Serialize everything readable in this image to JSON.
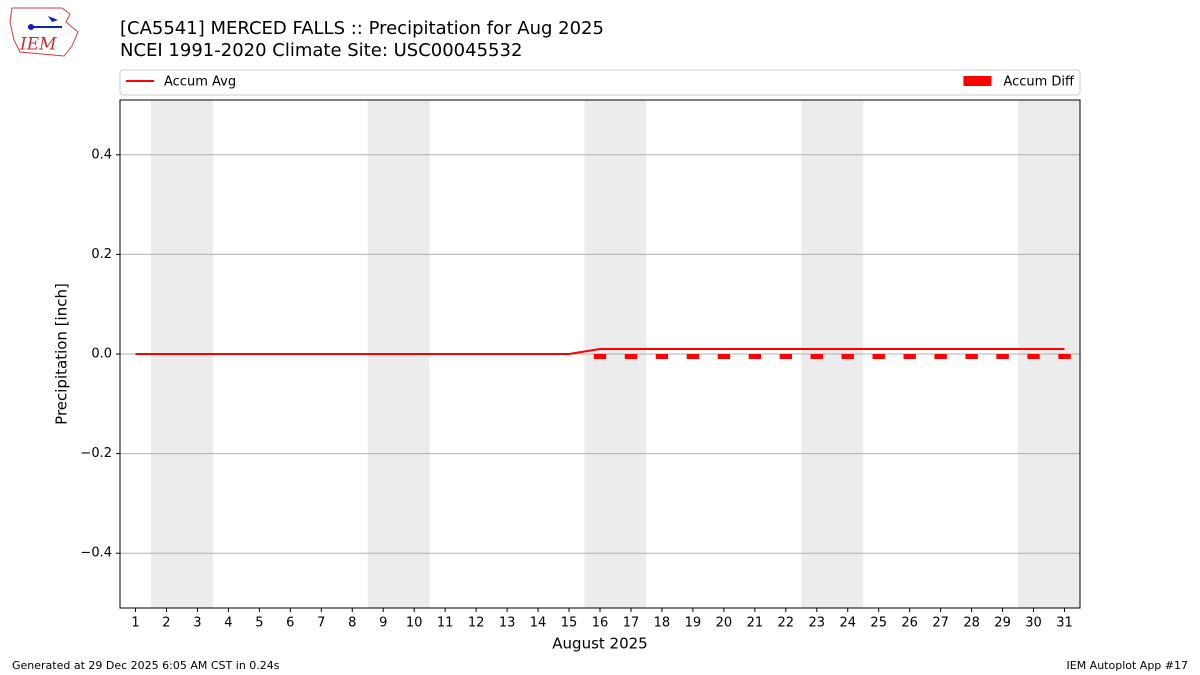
{
  "logo_text": "IEM",
  "footer": {
    "left": "Generated at 29 Dec 2025 6:05 AM CST in 0.24s",
    "right": "IEM Autoplot App #17"
  },
  "chart_data": {
    "type": "combo",
    "title": "[CA5541] MERCED FALLS :: Precipitation for Aug 2025",
    "subtitle": "NCEI 1991-2020 Climate Site: USC00045532",
    "x_label": "August 2025",
    "y_label": "Precipitation [inch]",
    "x": [
      1,
      2,
      3,
      4,
      5,
      6,
      7,
      8,
      9,
      10,
      11,
      12,
      13,
      14,
      15,
      16,
      17,
      18,
      19,
      20,
      21,
      22,
      23,
      24,
      25,
      26,
      27,
      28,
      29,
      30,
      31
    ],
    "xlim": [
      0.5,
      31.5
    ],
    "xticks": [
      1,
      2,
      3,
      4,
      5,
      6,
      7,
      8,
      9,
      10,
      11,
      12,
      13,
      14,
      15,
      16,
      17,
      18,
      19,
      20,
      21,
      22,
      23,
      24,
      25,
      26,
      27,
      28,
      29,
      30,
      31
    ],
    "ylim": [
      -0.51,
      0.51
    ],
    "yticks": [
      {
        "value": -0.4,
        "label": "−0.4"
      },
      {
        "value": -0.2,
        "label": "−0.2"
      },
      {
        "value": 0,
        "label": "0.0"
      },
      0.2,
      0.4
    ],
    "grid": true,
    "legend": "top",
    "shaded_spans": [
      [
        1.5,
        3.5
      ],
      [
        8.5,
        10.5
      ],
      [
        15.5,
        17.5
      ],
      [
        22.5,
        24.5
      ],
      [
        29.5,
        31.5
      ]
    ],
    "shade_color": "#ececec",
    "series": [
      {
        "name": "Accum Avg",
        "type": "line",
        "color": "#ff0000",
        "values": [
          0,
          0,
          0,
          0,
          0,
          0,
          0,
          0,
          0,
          0,
          0,
          0,
          0,
          0,
          0,
          0.01,
          0.01,
          0.01,
          0.01,
          0.01,
          0.01,
          0.01,
          0.01,
          0.01,
          0.01,
          0.01,
          0.01,
          0.01,
          0.01,
          0.01,
          0.01
        ]
      },
      {
        "name": "Accum Diff",
        "type": "bar",
        "color": "#ff0000",
        "values": [
          0,
          0,
          0,
          0,
          0,
          0,
          0,
          0,
          0,
          0,
          0,
          0,
          0,
          0,
          0,
          -0.01,
          -0.01,
          -0.01,
          -0.01,
          -0.01,
          -0.01,
          -0.01,
          -0.01,
          -0.01,
          -0.01,
          -0.01,
          -0.01,
          -0.01,
          -0.01,
          -0.01,
          -0.01
        ]
      }
    ]
  }
}
